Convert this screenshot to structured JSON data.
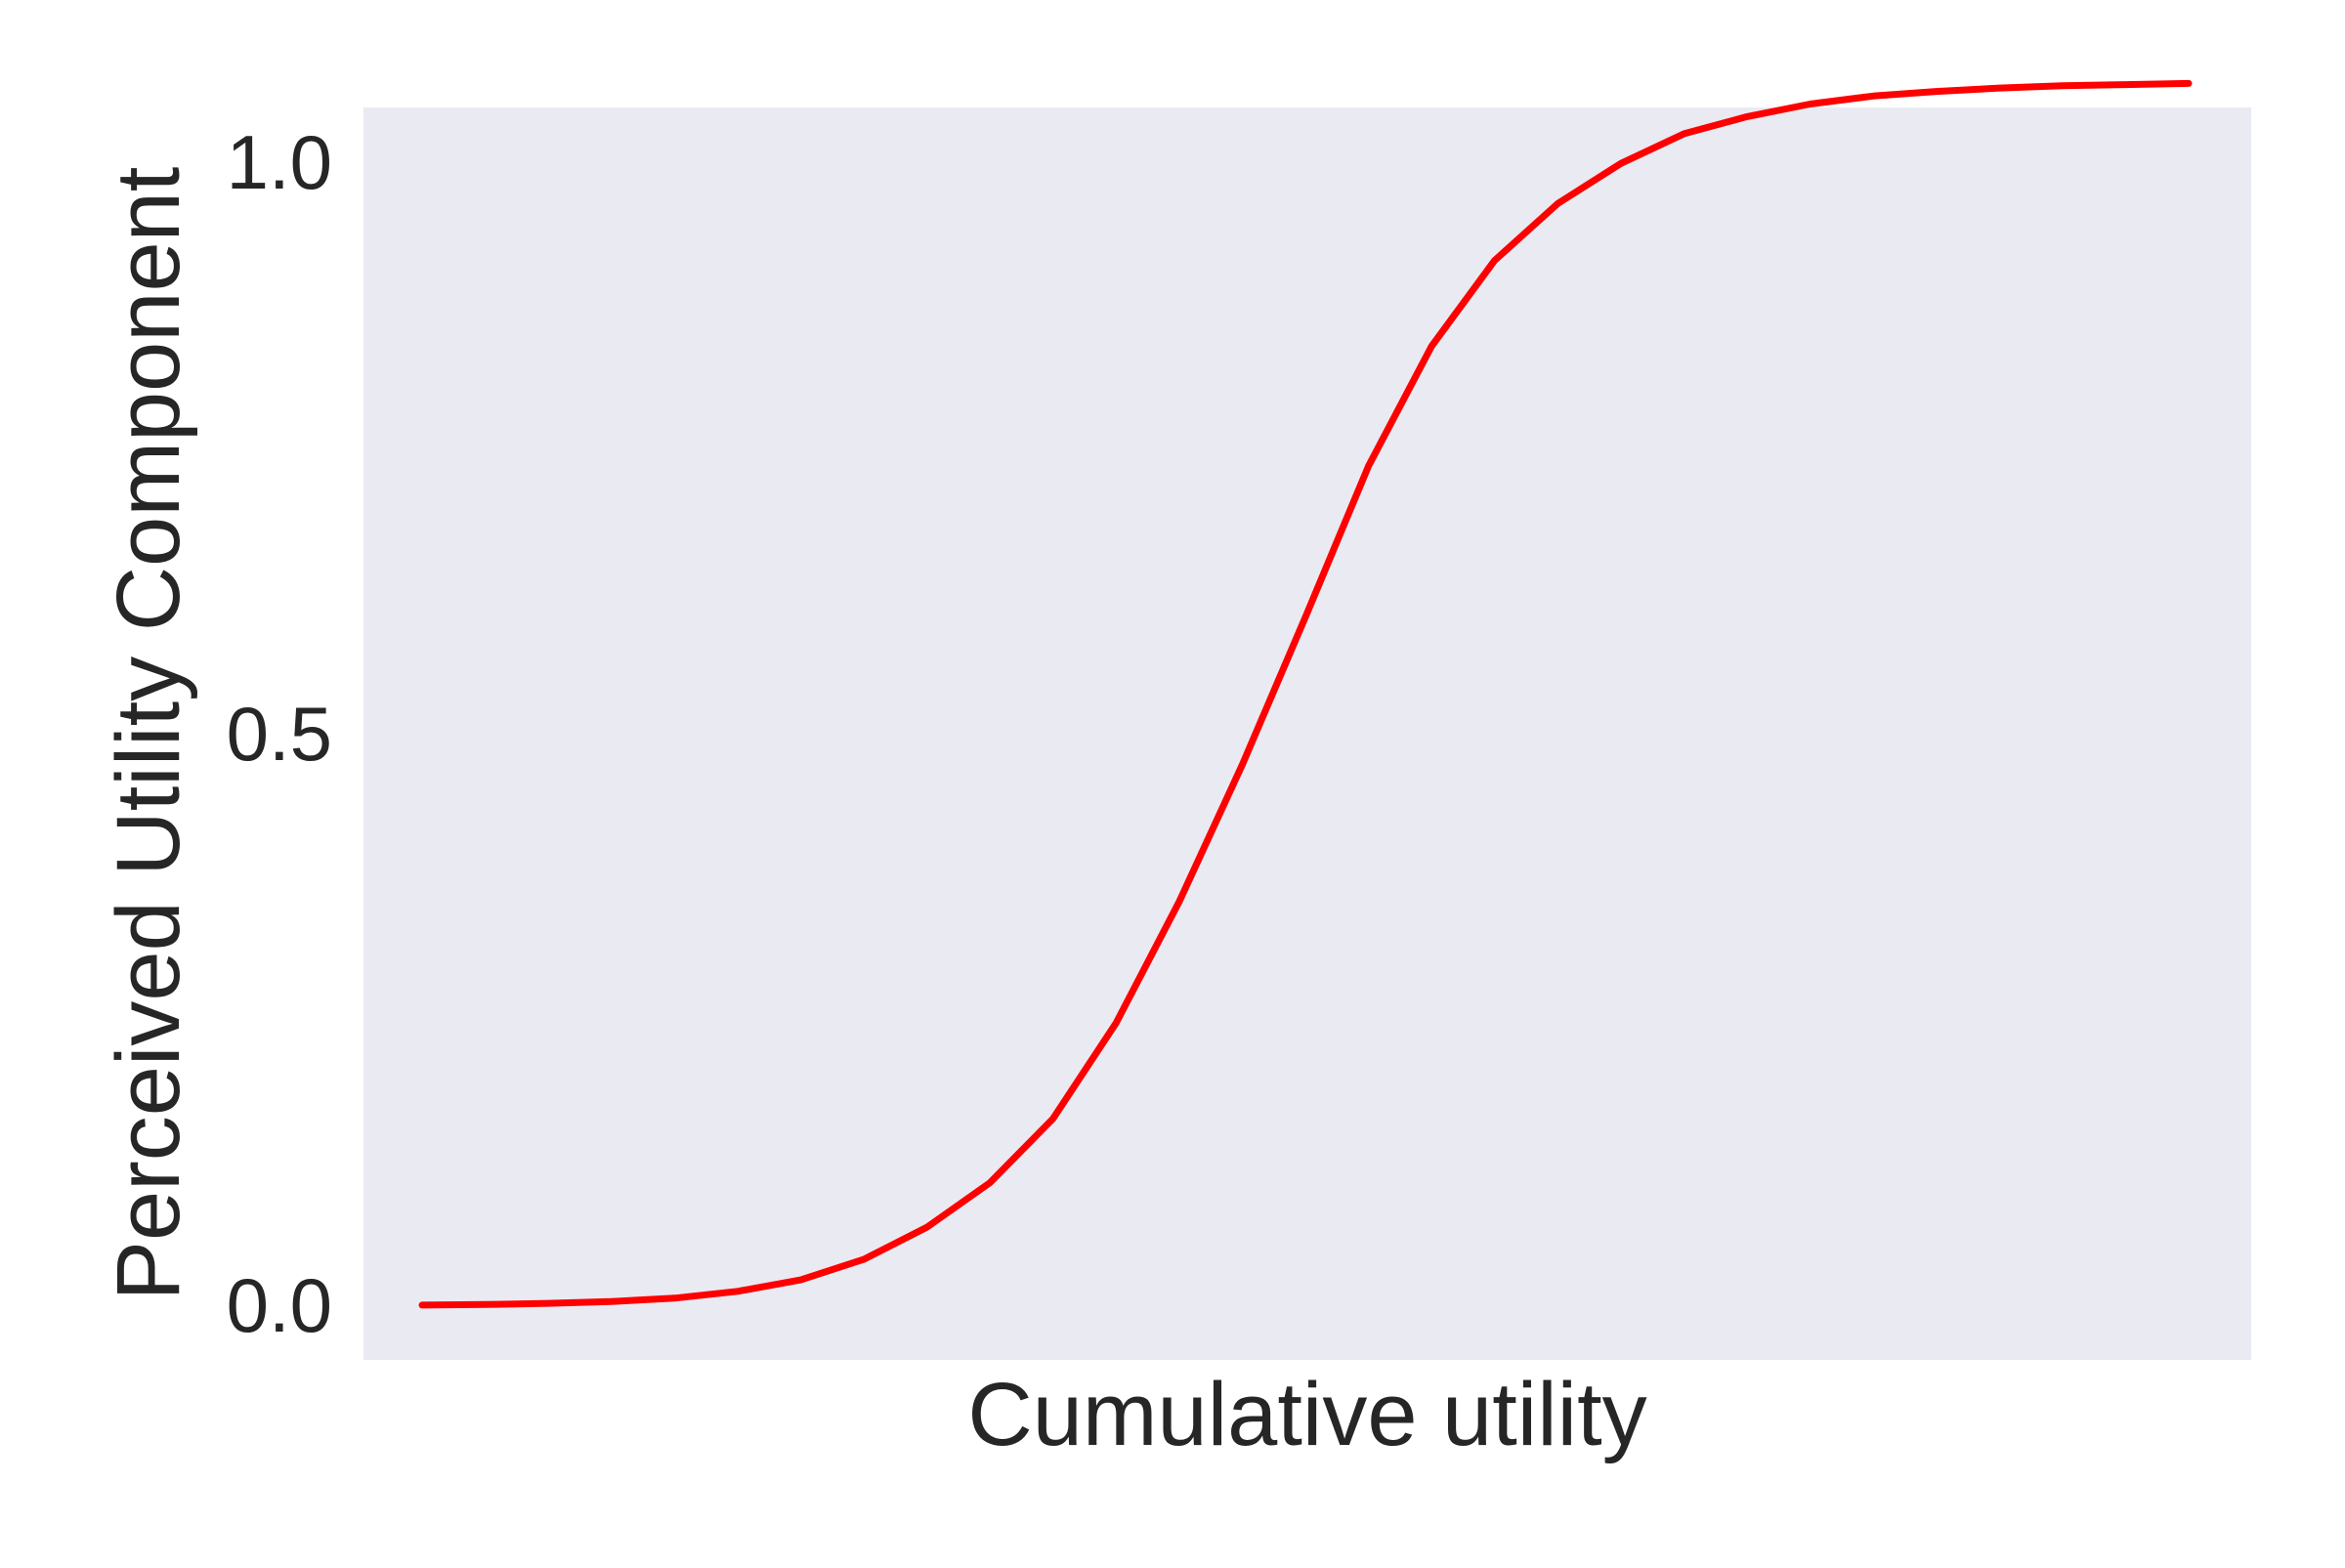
{
  "chart_data": {
    "type": "line",
    "title": "",
    "xlabel": "Cumulative utility",
    "ylabel": "Perceived Utility Component",
    "x_ticks_shown": false,
    "xlim": [
      0,
      1
    ],
    "ylim": [
      -0.048,
      1.048
    ],
    "yticks": [
      {
        "value": 0.0,
        "label": "0.0"
      },
      {
        "value": 0.5,
        "label": "0.5"
      },
      {
        "value": 1.0,
        "label": "1.0"
      }
    ],
    "grid": false,
    "background": "#eaeaf2",
    "series": [
      {
        "color": "#ff0000",
        "x": [
          0,
          0.0357,
          0.0714,
          0.1071,
          0.1429,
          0.1786,
          0.2143,
          0.25,
          0.2857,
          0.3214,
          0.3571,
          0.3929,
          0.4286,
          0.4643,
          0.5,
          0.5357,
          0.5714,
          0.6071,
          0.6429,
          0.6786,
          0.7143,
          0.75,
          0.7857,
          0.8214,
          0.8571,
          0.8929,
          0.9286,
          0.9643,
          1.0
        ],
        "y": [
          0.0,
          0.0005,
          0.0015,
          0.003,
          0.006,
          0.012,
          0.022,
          0.04,
          0.068,
          0.107,
          0.163,
          0.247,
          0.353,
          0.473,
          0.602,
          0.734,
          0.839,
          0.914,
          0.964,
          0.999,
          1.025,
          1.04,
          1.051,
          1.058,
          1.062,
          1.065,
          1.067,
          1.068,
          1.069
        ]
      }
    ]
  }
}
